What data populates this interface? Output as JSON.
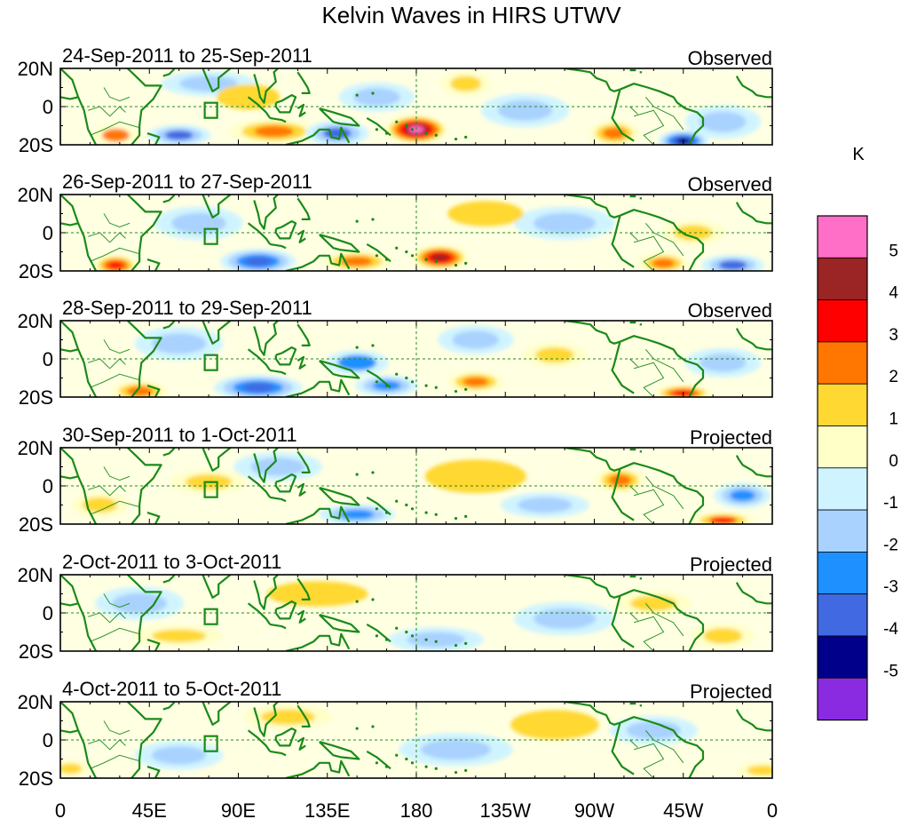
{
  "chart_data": {
    "type": "heatmap",
    "title": "Kelvin Waves in HIRS UTWV",
    "lat_tick_labels": [
      "20N",
      "0",
      "20S"
    ],
    "lon_tick_labels": [
      "0",
      "45E",
      "90E",
      "135E",
      "180",
      "135W",
      "90W",
      "45W",
      "0"
    ],
    "lat_range": [
      -20,
      20
    ],
    "lon_range": [
      0,
      360
    ],
    "colorbar": {
      "unit": "K",
      "tick_labels": [
        "5",
        "4",
        "3",
        "2",
        "1",
        "0",
        "-1",
        "-2",
        "-3",
        "-4",
        "-5"
      ],
      "colors": [
        "#ff6ec7",
        "#9b2424",
        "#ff0000",
        "#ff7700",
        "#ffd832",
        "#ffffc8",
        "#d0f4ff",
        "#a9d2ff",
        "#1e90ff",
        "#4169e1",
        "#00008b",
        "#8a2be2"
      ]
    },
    "panels": [
      {
        "date_range": "24-Sep-2011 to 25-Sep-2011",
        "type_label": "Observed",
        "anomalies": [
          {
            "lon": 180,
            "lat": -12,
            "value": 5.2,
            "rlon": 10,
            "rlat": 7
          },
          {
            "lon": 108,
            "lat": -13,
            "value": 2.4,
            "rlon": 14,
            "rlat": 6
          },
          {
            "lon": 28,
            "lat": -15,
            "value": 2,
            "rlon": 7,
            "rlat": 5
          },
          {
            "lon": 205,
            "lat": 12,
            "value": 1.5,
            "rlon": 8,
            "rlat": 6
          },
          {
            "lon": 280,
            "lat": -14,
            "value": 2.8,
            "rlon": 8,
            "rlat": 6
          },
          {
            "lon": 315,
            "lat": -18,
            "value": -4.5,
            "rlon": 8,
            "rlat": 5
          },
          {
            "lon": 140,
            "lat": -14,
            "value": -3,
            "rlon": 10,
            "rlat": 6
          },
          {
            "lon": 60,
            "lat": -15,
            "value": -3,
            "rlon": 10,
            "rlat": 5
          },
          {
            "lon": 75,
            "lat": 12,
            "value": -1.8,
            "rlon": 15,
            "rlat": 6
          },
          {
            "lon": 235,
            "lat": -2,
            "value": -1.5,
            "rlon": 14,
            "rlat": 8
          },
          {
            "lon": 160,
            "lat": 5,
            "value": -1.5,
            "rlon": 12,
            "rlat": 7
          },
          {
            "lon": 335,
            "lat": -8,
            "value": -1.5,
            "rlon": 12,
            "rlat": 8
          },
          {
            "lon": 95,
            "lat": 5,
            "value": 1,
            "rlon": 10,
            "rlat": 6
          }
        ]
      },
      {
        "date_range": "26-Sep-2011 to 27-Sep-2011",
        "type_label": "Observed",
        "anomalies": [
          {
            "lon": 192,
            "lat": -13,
            "value": 4.2,
            "rlon": 9,
            "rlat": 6
          },
          {
            "lon": 28,
            "lat": -17,
            "value": 3.5,
            "rlon": 7,
            "rlat": 5
          },
          {
            "lon": 150,
            "lat": -15,
            "value": 2.3,
            "rlon": 11,
            "rlat": 5
          },
          {
            "lon": 100,
            "lat": -15,
            "value": -3.5,
            "rlon": 12,
            "rlat": 6
          },
          {
            "lon": 305,
            "lat": -16,
            "value": 2.2,
            "rlon": 8,
            "rlat": 5
          },
          {
            "lon": 340,
            "lat": -17,
            "value": -3,
            "rlon": 10,
            "rlat": 5
          },
          {
            "lon": 255,
            "lat": 5,
            "value": -1.5,
            "rlon": 16,
            "rlat": 8
          },
          {
            "lon": 70,
            "lat": 5,
            "value": -1.5,
            "rlon": 14,
            "rlat": 8
          },
          {
            "lon": 215,
            "lat": 10,
            "value": 1,
            "rlon": 12,
            "rlat": 6
          },
          {
            "lon": 320,
            "lat": 0,
            "value": 1.2,
            "rlon": 10,
            "rlat": 6
          }
        ]
      },
      {
        "date_range": "28-Sep-2011 to 29-Sep-2011",
        "type_label": "Observed",
        "anomalies": [
          {
            "lon": 210,
            "lat": -12,
            "value": 2.8,
            "rlon": 9,
            "rlat": 5
          },
          {
            "lon": 40,
            "lat": -17,
            "value": 2.4,
            "rlon": 9,
            "rlat": 5
          },
          {
            "lon": 315,
            "lat": -18,
            "value": 3.5,
            "rlon": 9,
            "rlat": 4
          },
          {
            "lon": 100,
            "lat": -15,
            "value": -3.5,
            "rlon": 14,
            "rlat": 6
          },
          {
            "lon": 165,
            "lat": -14,
            "value": -2.5,
            "rlon": 10,
            "rlat": 5
          },
          {
            "lon": 150,
            "lat": -2,
            "value": -2,
            "rlon": 10,
            "rlat": 6
          },
          {
            "lon": 250,
            "lat": 2,
            "value": 1.8,
            "rlon": 10,
            "rlat": 6
          },
          {
            "lon": 335,
            "lat": -2,
            "value": -1.5,
            "rlon": 12,
            "rlat": 7
          },
          {
            "lon": 60,
            "lat": 8,
            "value": -1.2,
            "rlon": 14,
            "rlat": 8
          },
          {
            "lon": 210,
            "lat": 10,
            "value": -1.2,
            "rlon": 12,
            "rlat": 7
          }
        ]
      },
      {
        "date_range": "30-Sep-2011 to 1-Oct-2011",
        "type_label": "Projected",
        "anomalies": [
          {
            "lon": 283,
            "lat": 3,
            "value": 2.6,
            "rlon": 8,
            "rlat": 6
          },
          {
            "lon": 335,
            "lat": -18,
            "value": 3,
            "rlon": 10,
            "rlat": 4
          },
          {
            "lon": 20,
            "lat": -10,
            "value": 1.8,
            "rlon": 9,
            "rlat": 6
          },
          {
            "lon": 75,
            "lat": 2,
            "value": 1.6,
            "rlon": 12,
            "rlat": 6
          },
          {
            "lon": 150,
            "lat": -15,
            "value": -2.8,
            "rlon": 12,
            "rlat": 5
          },
          {
            "lon": 245,
            "lat": -10,
            "value": -1.8,
            "rlon": 14,
            "rlat": 6
          },
          {
            "lon": 345,
            "lat": -5,
            "value": -2.2,
            "rlon": 9,
            "rlat": 6
          },
          {
            "lon": 110,
            "lat": 10,
            "value": -1.3,
            "rlon": 14,
            "rlat": 7
          },
          {
            "lon": 210,
            "lat": 5,
            "value": 1,
            "rlon": 16,
            "rlat": 8
          }
        ]
      },
      {
        "date_range": "2-Oct-2011 to 3-Oct-2011",
        "type_label": "Projected",
        "anomalies": [
          {
            "lon": 300,
            "lat": 5,
            "value": 1.8,
            "rlon": 12,
            "rlat": 6
          },
          {
            "lon": 60,
            "lat": -12,
            "value": 1.6,
            "rlon": 14,
            "rlat": 5
          },
          {
            "lon": 190,
            "lat": -14,
            "value": -1.5,
            "rlon": 15,
            "rlat": 6
          },
          {
            "lon": 335,
            "lat": -12,
            "value": 1.5,
            "rlon": 10,
            "rlat": 6
          },
          {
            "lon": 40,
            "lat": 5,
            "value": -1.2,
            "rlon": 14,
            "rlat": 8
          },
          {
            "lon": 255,
            "lat": -3,
            "value": -1.2,
            "rlon": 16,
            "rlat": 8
          },
          {
            "lon": 130,
            "lat": 10,
            "value": 1,
            "rlon": 16,
            "rlat": 6
          }
        ]
      },
      {
        "date_range": "4-Oct-2011 to 5-Oct-2011",
        "type_label": "Projected",
        "anomalies": [
          {
            "lon": 355,
            "lat": -16,
            "value": 1.6,
            "rlon": 8,
            "rlat": 4
          },
          {
            "lon": 5,
            "lat": -15,
            "value": 1.4,
            "rlon": 6,
            "rlat": 4
          },
          {
            "lon": 115,
            "lat": 12,
            "value": 1.2,
            "rlon": 14,
            "rlat": 6
          },
          {
            "lon": 200,
            "lat": -5,
            "value": -1.2,
            "rlon": 18,
            "rlat": 8
          },
          {
            "lon": 60,
            "lat": -8,
            "value": -1.2,
            "rlon": 14,
            "rlat": 7
          },
          {
            "lon": 300,
            "lat": 5,
            "value": -1.1,
            "rlon": 14,
            "rlat": 7
          },
          {
            "lon": 250,
            "lat": 8,
            "value": 1,
            "rlon": 14,
            "rlat": 7
          }
        ]
      }
    ]
  }
}
